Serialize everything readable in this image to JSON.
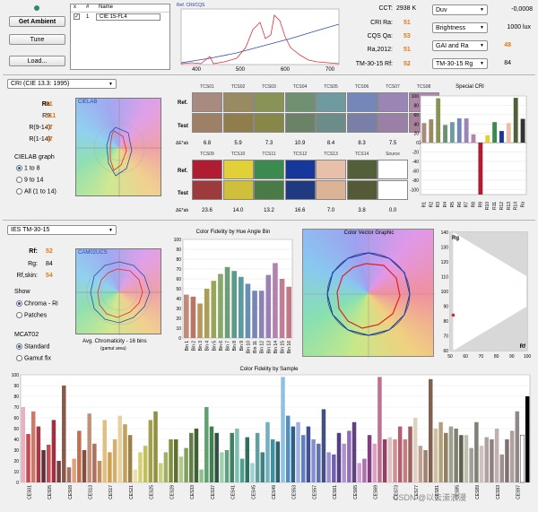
{
  "buttons": {
    "get_ambient": "Get Ambient",
    "tune": "Tune",
    "load": "Load..."
  },
  "list": {
    "headers": [
      "x",
      "#",
      "Name"
    ],
    "rows": [
      {
        "checked": "✓",
        "num": "1",
        "name": "CIE 15-FL4"
      }
    ]
  },
  "spectrum": {
    "title": "Ref. CRI/CQS",
    "ticks": [
      "400",
      "500",
      "600",
      "700"
    ]
  },
  "metrics": [
    {
      "label": "CCT:",
      "value": "2938 K"
    },
    {
      "label": "CRI Ra:",
      "value": "51"
    },
    {
      "label": "CQS Qa:",
      "value": "53"
    },
    {
      "label": "Ra,2012:",
      "value": "51"
    },
    {
      "label": "TM-30-15 Rf:",
      "value": "52"
    }
  ],
  "right_selects": [
    {
      "label": "Duv",
      "value": "-0,0008"
    },
    {
      "label": "Brightness",
      "value": "1000 lux"
    },
    {
      "label": "GAI and Ra",
      "value": "48"
    },
    {
      "label": "TM-30-15 Rg",
      "value": "84"
    }
  ],
  "cri": {
    "method": "CRI (CIE 13.3: 1995)",
    "stats": [
      {
        "label": "Ra:",
        "value": "51"
      },
      {
        "label": "R9:",
        "value": "-111"
      },
      {
        "label": "R(9-14):",
        "value": "17"
      },
      {
        "label": "R(1-14):",
        "value": "37"
      }
    ],
    "plot_title": "CIELAB",
    "graph_label": "CIELAB graph",
    "options": [
      "1 to 8",
      "9 to 14",
      "All (1 to 14)"
    ],
    "ref_label": "Ref.",
    "test_label": "Test",
    "de_label": "ΔE*ab"
  },
  "tcs_row1": [
    {
      "name": "TCS01",
      "de": "6.8",
      "ref": "#a88a7e",
      "test": "#9e8066"
    },
    {
      "name": "TCS02",
      "de": "5.9",
      "ref": "#9a8a62",
      "test": "#8f7e4c"
    },
    {
      "name": "TCS03",
      "de": "7.3",
      "ref": "#8a9356",
      "test": "#87874a"
    },
    {
      "name": "TCS04",
      "de": "10.9",
      "ref": "#6f9172",
      "test": "#6b8266"
    },
    {
      "name": "TCS05",
      "de": "8.4",
      "ref": "#6f9a9f",
      "test": "#6c8c8a"
    },
    {
      "name": "TCS06",
      "de": "8.3",
      "ref": "#7388b8",
      "test": "#7a7fa8"
    },
    {
      "name": "TCS07",
      "de": "7.5",
      "ref": "#9a86b6",
      "test": "#9a7fa6"
    },
    {
      "name": "TCS08",
      "de": "11.8",
      "ref": "#ad88a8",
      "test": "#a9809a"
    }
  ],
  "tcs_row2": [
    {
      "name": "TCS09",
      "de": "23.6",
      "ref": "#b01c32",
      "test": "#9c3a3c"
    },
    {
      "name": "TCS10",
      "de": "14.0",
      "ref": "#e1d038",
      "test": "#cfbf3a"
    },
    {
      "name": "TCS11",
      "de": "13.2",
      "ref": "#3c8a50",
      "test": "#4a7a46"
    },
    {
      "name": "TCS12",
      "de": "16.6",
      "ref": "#17389a",
      "test": "#1f3a7e"
    },
    {
      "name": "TCS13",
      "de": "7.0",
      "ref": "#e8c0aa",
      "test": "#dbb498"
    },
    {
      "name": "TCS14",
      "de": "3.8",
      "ref": "#52603a",
      "test": "#545a36"
    },
    {
      "name": "Source",
      "de": "0.0",
      "ref": "#ffffff",
      "test": "#ffffff"
    }
  ],
  "special_cri": {
    "title": "Special CRI",
    "labels": [
      "R1",
      "R2",
      "R3",
      "R4",
      "R5",
      "R6",
      "R7",
      "R8",
      "R9",
      "R10",
      "R11",
      "R12",
      "R13",
      "R14",
      "Ra"
    ],
    "values": [
      42,
      50,
      95,
      38,
      44,
      52,
      52,
      18,
      -111,
      16,
      44,
      25,
      42,
      96,
      51
    ],
    "colors": [
      "#a88a7e",
      "#9a8a62",
      "#8a9356",
      "#6f9172",
      "#6f9a9f",
      "#7388b8",
      "#9a86b6",
      "#ad88a8",
      "#b01c32",
      "#e1d038",
      "#3c8a50",
      "#17389a",
      "#e8c0aa",
      "#52603a",
      "#333333"
    ],
    "yticks": [
      "100",
      "80",
      "60",
      "40",
      "20",
      "0",
      "-20",
      "-40",
      "-60",
      "-80",
      "-100"
    ]
  },
  "tm30": {
    "method": "IES TM-30-15",
    "stats": [
      {
        "label": "Rf:",
        "value": "52"
      },
      {
        "label": "Rg:",
        "value": "84"
      },
      {
        "label": "Rf,skin:",
        "value": "54"
      }
    ],
    "plot_title": "CAM02UCS",
    "show_label": "Show",
    "show_options": [
      "Chroma - Ri",
      "Patches"
    ],
    "mcat_label": "MCAT02",
    "mcat_options": [
      "Standard",
      "Gamut fix"
    ],
    "avg_caption": "Avg. Chromaticity - 16 bins",
    "avg_sub": "(gamut area)"
  },
  "hue_bin_chart": {
    "title": "Color Fidelity by Hue Angle Bin",
    "labels": [
      "Bin 1",
      "Bin 2",
      "Bin 3",
      "Bin 4",
      "Bin 5",
      "Bin 6",
      "Bin 7",
      "Bin 8",
      "Bin 9",
      "Bin 10",
      "Bin 11",
      "Bin 12",
      "Bin 13",
      "Bin 14",
      "Bin 15",
      "Bin 16"
    ],
    "values": [
      44,
      42,
      35,
      50,
      58,
      65,
      72,
      68,
      62,
      55,
      48,
      48,
      64,
      76,
      60,
      52
    ],
    "colors": [
      "#c28a7a",
      "#b97566",
      "#b7975e",
      "#a9a055",
      "#9ba45a",
      "#86a86a",
      "#6e9d78",
      "#5c9a8a",
      "#5a9aa0",
      "#6a8eb0",
      "#7886b5",
      "#8884b8",
      "#9c80b4",
      "#b383b0",
      "#bd7e96",
      "#c07886"
    ],
    "yticks": [
      "100",
      "90",
      "80",
      "70",
      "60",
      "50",
      "40",
      "30",
      "20",
      "10",
      "0"
    ]
  },
  "vector_title": "Color Vector Graphic",
  "rf_rg": {
    "rg_label": "Rg",
    "rf_label": "Rf",
    "x_ticks": [
      "50",
      "60",
      "70",
      "80",
      "90",
      "100"
    ],
    "y_ticks": [
      "140",
      "130",
      "120",
      "110",
      "100",
      "90",
      "80",
      "70",
      "60"
    ],
    "point": {
      "rf": 52,
      "rg": 84
    }
  },
  "sample_chart": {
    "title": "Color Fidelity by Sample",
    "yticks": [
      "100",
      "90",
      "80",
      "70",
      "60",
      "50",
      "40",
      "30",
      "20",
      "10",
      "0"
    ],
    "xlabels": [
      "CES01",
      "CES05",
      "CES09",
      "CES13",
      "CES17",
      "CES21",
      "CES25",
      "CES29",
      "CES33",
      "CES37",
      "CES41",
      "CES45",
      "CES49",
      "CES53",
      "CES57",
      "CES61",
      "CES65",
      "CES69",
      "CES73",
      "CES77",
      "CES81",
      "CES85",
      "CES89",
      "CES93",
      "CES97"
    ],
    "values": [
      70,
      45,
      66,
      52,
      30,
      35,
      58,
      20,
      90,
      14,
      22,
      48,
      30,
      64,
      36,
      20,
      58,
      28,
      40,
      62,
      54,
      44,
      12,
      28,
      34,
      58,
      66,
      18,
      28,
      40,
      40,
      24,
      32,
      46,
      50,
      12,
      70,
      52,
      46,
      28,
      30,
      46,
      50,
      22,
      42,
      18,
      46,
      28,
      56,
      40,
      38,
      98,
      62,
      52,
      56,
      44,
      52,
      40,
      36,
      68,
      28,
      26,
      46,
      36,
      48,
      56,
      18,
      22,
      44,
      36,
      98,
      40,
      42,
      40,
      52,
      40,
      52,
      60,
      34,
      30,
      96,
      50,
      56,
      46,
      52,
      50,
      44,
      44,
      32,
      56,
      34,
      42,
      40,
      50,
      26,
      40,
      48,
      66,
      44,
      80
    ],
    "colors": [
      "#e8b0c0",
      "#c84850",
      "#d07868",
      "#a83848",
      "#603038",
      "#c05058",
      "#a03040",
      "#704040",
      "#8a5848",
      "#a07060",
      "#e0a080",
      "#c07050",
      "#805040",
      "#c09078",
      "#b07060",
      "#c09060",
      "#e0c080",
      "#d0a050",
      "#d0b070",
      "#e8d0a0",
      "#c0a060",
      "#a08040",
      "#e8e0b0",
      "#d8d070",
      "#c0c060",
      "#a0a050",
      "#909040",
      "#c8d080",
      "#a0b060",
      "#809040",
      "#607030",
      "#b0c890",
      "#80a060",
      "#608048",
      "#406030",
      "#90c090",
      "#60a070",
      "#408050",
      "#305040",
      "#a0d0b0",
      "#60a080",
      "#408060",
      "#80c0b0",
      "#50a090",
      "#307060",
      "#a0d0d0",
      "#60a0a0",
      "#408080",
      "#70b0c0",
      "#4090a0",
      "#306070",
      "#90c0e0",
      "#5090c0",
      "#306080",
      "#a0b0e0",
      "#6080c0",
      "#405090",
      "#8090d0",
      "#6070b0",
      "#405080",
      "#a090d0",
      "#7060b0",
      "#504080",
      "#b090d0",
      "#9070b0",
      "#604080",
      "#d0a0d0",
      "#b070b0",
      "#804080",
      "#e0a0c0",
      "#c07090",
      "#904060",
      "#e0c0c0",
      "#d09090",
      "#b06070",
      "#c08080",
      "#a06060",
      "#e0d0c0",
      "#c0a090",
      "#a08070",
      "#806050",
      "#d0c0a0",
      "#b0a080",
      "#908060",
      "#a0a090",
      "#808070",
      "#606050",
      "#c0c0b0",
      "#a0a098",
      "#808078",
      "#d0c0c0",
      "#b0a0a0",
      "#908080",
      "#c0b0b0",
      "#a09090",
      "#807070",
      "#b0a0a0",
      "#908888",
      "#ffffff"
    ]
  },
  "watermark": "CSDN @以云潫浪漫"
}
